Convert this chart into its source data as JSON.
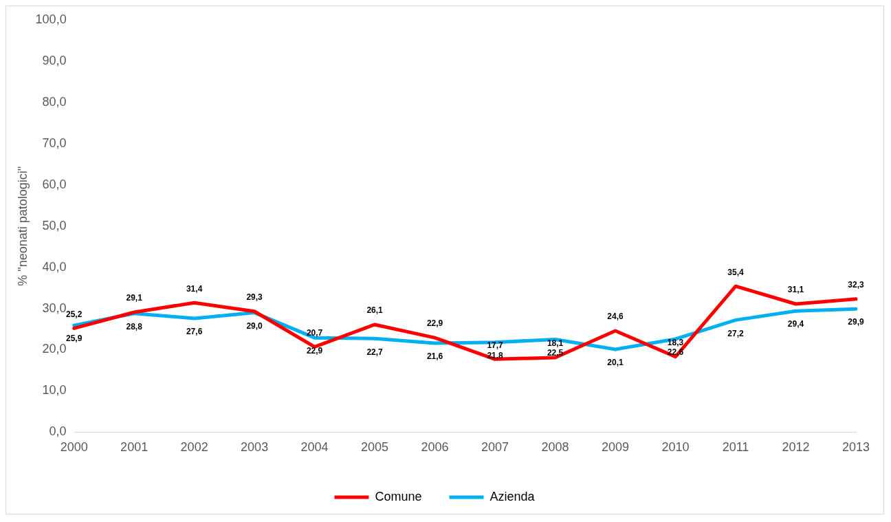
{
  "chart_data": {
    "type": "line",
    "ylabel": "% \"neonati patologici\"",
    "categories": [
      "2000",
      "2001",
      "2002",
      "2003",
      "2004",
      "2005",
      "2006",
      "2007",
      "2008",
      "2009",
      "2010",
      "2011",
      "2012",
      "2013"
    ],
    "series": [
      {
        "name": "Comune",
        "color": "#ff0000",
        "values": [
          25.2,
          29.1,
          31.4,
          29.3,
          20.7,
          26.1,
          22.9,
          17.7,
          18.1,
          24.6,
          18.3,
          35.4,
          31.1,
          32.3
        ],
        "value_labels": [
          "25,2",
          "29,1",
          "31,4",
          "29,3",
          "20,7",
          "26,1",
          "22,9",
          "17,7",
          "18,1",
          "24,6",
          "18,3",
          "35,4",
          "31,1",
          "32,3"
        ]
      },
      {
        "name": "Azienda",
        "color": "#00b0f0",
        "values": [
          25.9,
          28.8,
          27.6,
          29.0,
          22.9,
          22.7,
          21.6,
          21.8,
          22.5,
          20.1,
          22.6,
          27.2,
          29.4,
          29.9
        ],
        "value_labels": [
          "25,9",
          "28,8",
          "27,6",
          "29,0",
          "22,9",
          "22,7",
          "21,6",
          "21,8",
          "22,5",
          "20,1",
          "22,6",
          "27,2",
          "29,4",
          "29,9"
        ]
      }
    ],
    "ylim": [
      0,
      100
    ],
    "yticks": [
      {
        "value": 0,
        "label": "0,0"
      },
      {
        "value": 10,
        "label": "10,0"
      },
      {
        "value": 20,
        "label": "20,0"
      },
      {
        "value": 30,
        "label": "30,0"
      },
      {
        "value": 40,
        "label": "40,0"
      },
      {
        "value": 50,
        "label": "50,0"
      },
      {
        "value": 60,
        "label": "60,0"
      },
      {
        "value": 70,
        "label": "70,0"
      },
      {
        "value": 80,
        "label": "80,0"
      },
      {
        "value": 90,
        "label": "90,0"
      },
      {
        "value": 100,
        "label": "100,0"
      }
    ],
    "grid": false,
    "legend": "bottom",
    "marker": "none",
    "line_style": "solid"
  }
}
